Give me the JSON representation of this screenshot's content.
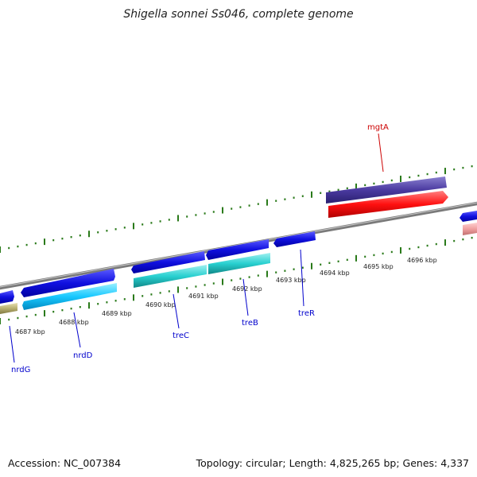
{
  "title": "Shigella sonnei Ss046, complete genome",
  "footer": {
    "accession": "Accession: NC_007384",
    "summary": "Topology: circular; Length: 4,825,265 bp; Genes: 4,337"
  },
  "scale": {
    "tick_labels": [
      "4687 kbp",
      "4688 kbp",
      "4689 kbp",
      "4690 kbp",
      "4691 kbp",
      "4692 kbp",
      "4693 kbp",
      "4694 kbp",
      "4695 kbp",
      "4696 kbp"
    ]
  },
  "genes": [
    {
      "name": "nrdG",
      "color": "#0000cc"
    },
    {
      "name": "nrdD",
      "color": "#0000cc"
    },
    {
      "name": "treC",
      "color": "#0000cc"
    },
    {
      "name": "treB",
      "color": "#0000cc"
    },
    {
      "name": "treR",
      "color": "#0000cc"
    },
    {
      "name": "mgtA",
      "color": "#cc0000"
    }
  ],
  "colors": {
    "backbone": "#8a8a8a",
    "tick": "#2a7a1a",
    "cds_forward": "#1010e0",
    "cds_light": "#18c8ff",
    "cds_cyan": "#28d0d0",
    "cds_olive": "#b8b070",
    "cds_purple": "#4a3aa0",
    "cds_red": "#ff1010",
    "cds_pink": "#f0a0a0"
  }
}
